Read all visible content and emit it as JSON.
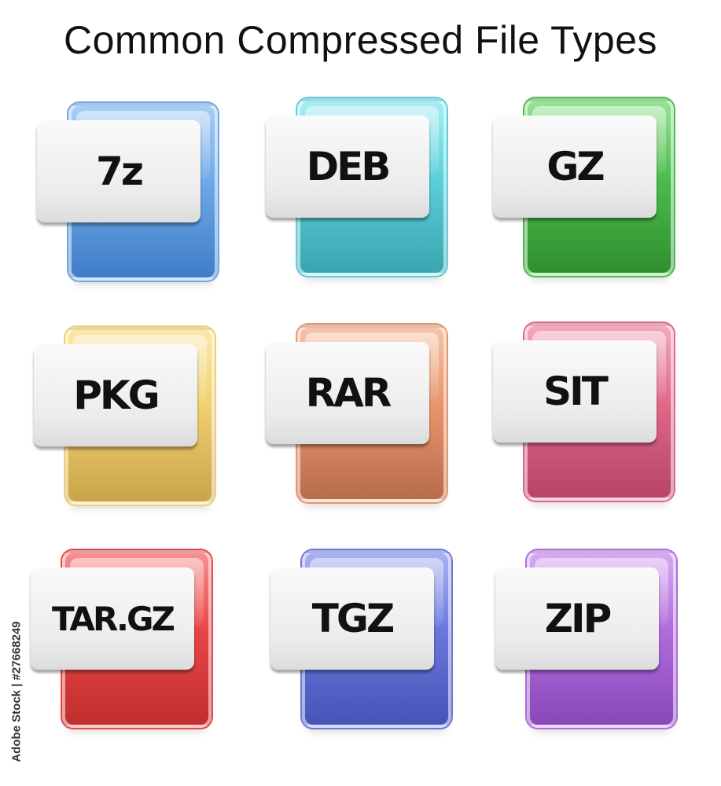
{
  "title": "Common Compressed File Types",
  "watermark": "Adobe Stock | #27668249",
  "icons": [
    {
      "label": "7z",
      "color": "#6ea8e8"
    },
    {
      "label": "DEB",
      "color": "#5ccfd8"
    },
    {
      "label": "GZ",
      "color": "#4cbc4c"
    },
    {
      "label": "PKG",
      "color": "#f0cf70"
    },
    {
      "label": "RAR",
      "color": "#e8956c"
    },
    {
      "label": "SIT",
      "color": "#e06888"
    },
    {
      "label": "TAR.GZ",
      "color": "#e84646"
    },
    {
      "label": "TGZ",
      "color": "#6a78dc"
    },
    {
      "label": "ZIP",
      "color": "#b06cdc"
    }
  ]
}
